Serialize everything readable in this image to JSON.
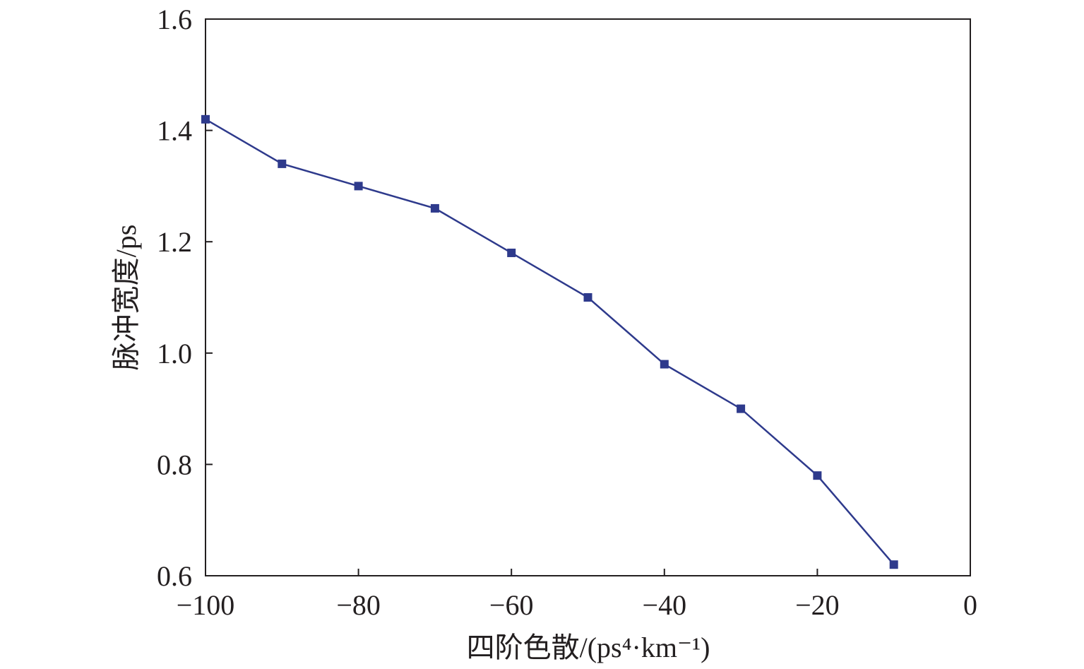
{
  "chart_data": {
    "type": "line",
    "title": "",
    "xlabel": "四阶色散/(ps⁴·km⁻¹)",
    "ylabel": "脉冲宽度/ps",
    "xlim": [
      -100,
      0
    ],
    "ylim": [
      0.6,
      1.6
    ],
    "xticks": [
      -100,
      -80,
      -60,
      -40,
      -20,
      0
    ],
    "xtick_labels": [
      "−100",
      "−80",
      "−60",
      "−40",
      "−20",
      "0"
    ],
    "yticks": [
      0.6,
      0.8,
      1.0,
      1.2,
      1.4,
      1.6
    ],
    "ytick_labels": [
      "0.6",
      "0.8",
      "1.0",
      "1.2",
      "1.4",
      "1.6"
    ],
    "grid": false,
    "series": [
      {
        "name": "pulse width",
        "color": "#2e3a8c",
        "x": [
          -100,
          -90,
          -80,
          -70,
          -60,
          -50,
          -40,
          -30,
          -20,
          -10
        ],
        "y": [
          1.42,
          1.34,
          1.3,
          1.26,
          1.18,
          1.1,
          0.98,
          0.9,
          0.78,
          0.62
        ]
      }
    ]
  }
}
